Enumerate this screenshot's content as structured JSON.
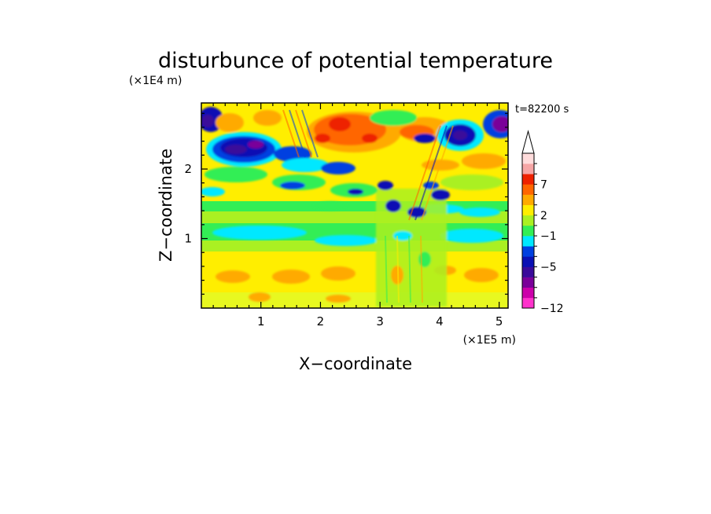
{
  "chart_data": {
    "type": "heatmap",
    "title": "disturbunce of potential temperature",
    "time_label": "t=82200 s",
    "xlabel": "X−coordinate",
    "ylabel": "Z−coordinate",
    "x_unit": "(×1E5 m)",
    "y_unit": "(×1E4 m)",
    "xlim": [
      0,
      5.15
    ],
    "ylim": [
      0,
      2.95
    ],
    "x_ticks": [
      "1",
      "2",
      "3",
      "4",
      "5"
    ],
    "y_ticks": [
      "1",
      "2"
    ],
    "colorbar": {
      "tick_labels": [
        "7",
        "2",
        "−1",
        "−5",
        "−12"
      ],
      "extend": "max",
      "colors": [
        "#ff33cc",
        "#cc00aa",
        "#7a0099",
        "#3a0a9a",
        "#0a10b4",
        "#0040e0",
        "#00e8ff",
        "#33ee55",
        "#aaf022",
        "#ffee00",
        "#ffaa00",
        "#ff6600",
        "#ee2200",
        "#f6a6a6",
        "#ffdcdc"
      ]
    }
  }
}
